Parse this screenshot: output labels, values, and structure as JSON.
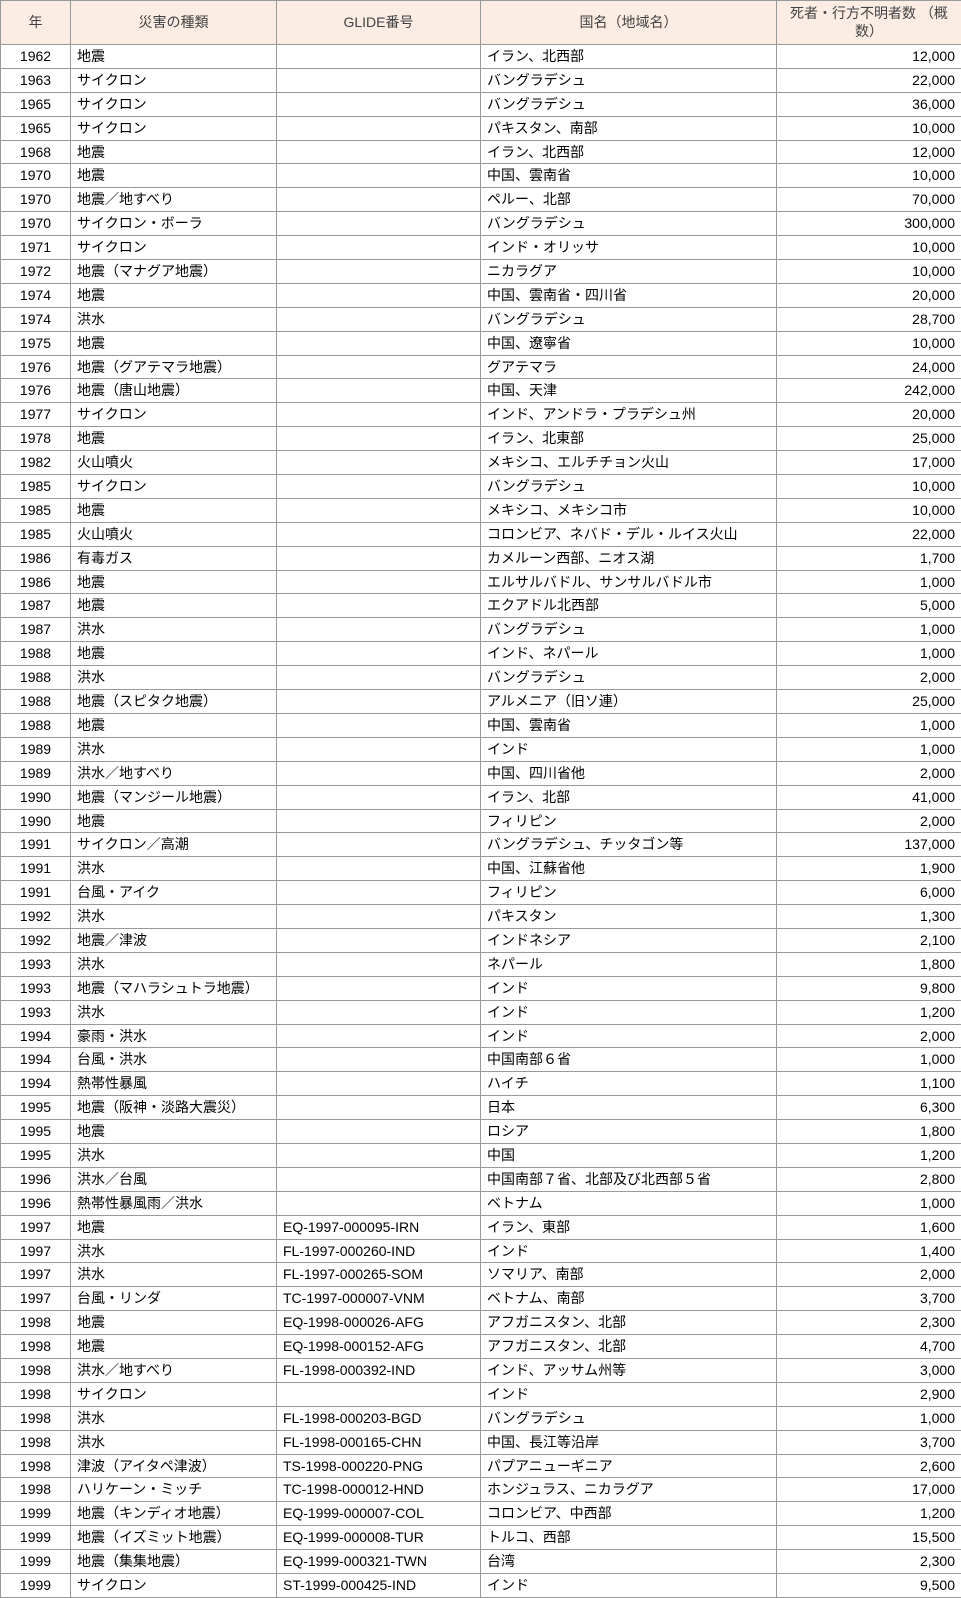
{
  "table": {
    "columns": [
      {
        "key": "year",
        "label": "年"
      },
      {
        "key": "type",
        "label": "災害の種類"
      },
      {
        "key": "glide",
        "label": "GLIDE番号"
      },
      {
        "key": "region",
        "label": "国名（地域名）"
      },
      {
        "key": "count",
        "label": "死者・行方不明者数\n（概数）"
      }
    ],
    "header_bg": "#fbece4",
    "border_color": "#999999",
    "font_family": "Hiragino Kaku Gothic ProN",
    "font_size_pt": 10,
    "rows": [
      {
        "year": "1962",
        "type": "地震",
        "glide": "",
        "region": "イラン、北西部",
        "count": "12,000"
      },
      {
        "year": "1963",
        "type": "サイクロン",
        "glide": "",
        "region": "バングラデシュ",
        "count": "22,000"
      },
      {
        "year": "1965",
        "type": "サイクロン",
        "glide": "",
        "region": "バングラデシュ",
        "count": "36,000"
      },
      {
        "year": "1965",
        "type": "サイクロン",
        "glide": "",
        "region": "パキスタン、南部",
        "count": "10,000"
      },
      {
        "year": "1968",
        "type": "地震",
        "glide": "",
        "region": "イラン、北西部",
        "count": "12,000"
      },
      {
        "year": "1970",
        "type": "地震",
        "glide": "",
        "region": "中国、雲南省",
        "count": "10,000"
      },
      {
        "year": "1970",
        "type": "地震／地すべり",
        "glide": "",
        "region": "ペルー、北部",
        "count": "70,000"
      },
      {
        "year": "1970",
        "type": "サイクロン・ボーラ",
        "glide": "",
        "region": "バングラデシュ",
        "count": "300,000"
      },
      {
        "year": "1971",
        "type": "サイクロン",
        "glide": "",
        "region": "インド・オリッサ",
        "count": "10,000"
      },
      {
        "year": "1972",
        "type": "地震（マナグア地震）",
        "glide": "",
        "region": "ニカラグア",
        "count": "10,000"
      },
      {
        "year": "1974",
        "type": "地震",
        "glide": "",
        "region": "中国、雲南省・四川省",
        "count": "20,000"
      },
      {
        "year": "1974",
        "type": "洪水",
        "glide": "",
        "region": "バングラデシュ",
        "count": "28,700"
      },
      {
        "year": "1975",
        "type": "地震",
        "glide": "",
        "region": "中国、遼寧省",
        "count": "10,000"
      },
      {
        "year": "1976",
        "type": "地震（グアテマラ地震）",
        "glide": "",
        "region": "グアテマラ",
        "count": "24,000"
      },
      {
        "year": "1976",
        "type": "地震（唐山地震）",
        "glide": "",
        "region": "中国、天津",
        "count": "242,000"
      },
      {
        "year": "1977",
        "type": "サイクロン",
        "glide": "",
        "region": "インド、アンドラ・プラデシュ州",
        "count": "20,000"
      },
      {
        "year": "1978",
        "type": "地震",
        "glide": "",
        "region": "イラン、北東部",
        "count": "25,000"
      },
      {
        "year": "1982",
        "type": "火山噴火",
        "glide": "",
        "region": "メキシコ、エルチチョン火山",
        "count": "17,000"
      },
      {
        "year": "1985",
        "type": "サイクロン",
        "glide": "",
        "region": "バングラデシュ",
        "count": "10,000"
      },
      {
        "year": "1985",
        "type": "地震",
        "glide": "",
        "region": "メキシコ、メキシコ市",
        "count": "10,000"
      },
      {
        "year": "1985",
        "type": "火山噴火",
        "glide": "",
        "region": "コロンビア、ネバド・デル・ルイス火山",
        "count": "22,000"
      },
      {
        "year": "1986",
        "type": "有毒ガス",
        "glide": "",
        "region": "カメルーン西部、ニオス湖",
        "count": "1,700"
      },
      {
        "year": "1986",
        "type": "地震",
        "glide": "",
        "region": "エルサルバドル、サンサルバドル市",
        "count": "1,000"
      },
      {
        "year": "1987",
        "type": "地震",
        "glide": "",
        "region": "エクアドル北西部",
        "count": "5,000"
      },
      {
        "year": "1987",
        "type": "洪水",
        "glide": "",
        "region": "バングラデシュ",
        "count": "1,000"
      },
      {
        "year": "1988",
        "type": "地震",
        "glide": "",
        "region": "インド、ネパール",
        "count": "1,000"
      },
      {
        "year": "1988",
        "type": "洪水",
        "glide": "",
        "region": "バングラデシュ",
        "count": "2,000"
      },
      {
        "year": "1988",
        "type": "地震（スピタク地震）",
        "glide": "",
        "region": "アルメニア（旧ソ連）",
        "count": "25,000"
      },
      {
        "year": "1988",
        "type": "地震",
        "glide": "",
        "region": "中国、雲南省",
        "count": "1,000"
      },
      {
        "year": "1989",
        "type": "洪水",
        "glide": "",
        "region": "インド",
        "count": "1,000"
      },
      {
        "year": "1989",
        "type": "洪水／地すべり",
        "glide": "",
        "region": "中国、四川省他",
        "count": "2,000"
      },
      {
        "year": "1990",
        "type": "地震（マンジール地震）",
        "glide": "",
        "region": "イラン、北部",
        "count": "41,000"
      },
      {
        "year": "1990",
        "type": "地震",
        "glide": "",
        "region": "フィリピン",
        "count": "2,000"
      },
      {
        "year": "1991",
        "type": "サイクロン／高潮",
        "glide": "",
        "region": "バングラデシュ、チッタゴン等",
        "count": "137,000"
      },
      {
        "year": "1991",
        "type": "洪水",
        "glide": "",
        "region": "中国、江蘇省他",
        "count": "1,900"
      },
      {
        "year": "1991",
        "type": "台風・アイク",
        "glide": "",
        "region": "フィリピン",
        "count": "6,000"
      },
      {
        "year": "1992",
        "type": "洪水",
        "glide": "",
        "region": "パキスタン",
        "count": "1,300"
      },
      {
        "year": "1992",
        "type": "地震／津波",
        "glide": "",
        "region": "インドネシア",
        "count": "2,100"
      },
      {
        "year": "1993",
        "type": "洪水",
        "glide": "",
        "region": "ネパール",
        "count": "1,800"
      },
      {
        "year": "1993",
        "type": "地震（マハラシュトラ地震）",
        "glide": "",
        "region": "インド",
        "count": "9,800"
      },
      {
        "year": "1993",
        "type": "洪水",
        "glide": "",
        "region": "インド",
        "count": "1,200"
      },
      {
        "year": "1994",
        "type": "豪雨・洪水",
        "glide": "",
        "region": "インド",
        "count": "2,000"
      },
      {
        "year": "1994",
        "type": "台風・洪水",
        "glide": "",
        "region": "中国南部６省",
        "count": "1,000"
      },
      {
        "year": "1994",
        "type": "熱帯性暴風",
        "glide": "",
        "region": "ハイチ",
        "count": "1,100"
      },
      {
        "year": "1995",
        "type": "地震（阪神・淡路大震災）",
        "glide": "",
        "region": "日本",
        "count": "6,300"
      },
      {
        "year": "1995",
        "type": "地震",
        "glide": "",
        "region": "ロシア",
        "count": "1,800"
      },
      {
        "year": "1995",
        "type": "洪水",
        "glide": "",
        "region": "中国",
        "count": "1,200"
      },
      {
        "year": "1996",
        "type": "洪水／台風",
        "glide": "",
        "region": "中国南部７省、北部及び北西部５省",
        "count": "2,800"
      },
      {
        "year": "1996",
        "type": "熱帯性暴風雨／洪水",
        "glide": "",
        "region": "ベトナム",
        "count": "1,000"
      },
      {
        "year": "1997",
        "type": "地震",
        "glide": "EQ-1997-000095-IRN",
        "region": "イラン、東部",
        "count": "1,600"
      },
      {
        "year": "1997",
        "type": "洪水",
        "glide": "FL-1997-000260-IND",
        "region": "インド",
        "count": "1,400"
      },
      {
        "year": "1997",
        "type": "洪水",
        "glide": "FL-1997-000265-SOM",
        "region": "ソマリア、南部",
        "count": "2,000"
      },
      {
        "year": "1997",
        "type": "台風・リンダ",
        "glide": "TC-1997-000007-VNM",
        "region": "ベトナム、南部",
        "count": "3,700"
      },
      {
        "year": "1998",
        "type": "地震",
        "glide": "EQ-1998-000026-AFG",
        "region": "アフガニスタン、北部",
        "count": "2,300"
      },
      {
        "year": "1998",
        "type": "地震",
        "glide": "EQ-1998-000152-AFG",
        "region": "アフガニスタン、北部",
        "count": "4,700"
      },
      {
        "year": "1998",
        "type": "洪水／地すべり",
        "glide": "FL-1998-000392-IND",
        "region": "インド、アッサム州等",
        "count": "3,000"
      },
      {
        "year": "1998",
        "type": "サイクロン",
        "glide": "",
        "region": "インド",
        "count": "2,900"
      },
      {
        "year": "1998",
        "type": "洪水",
        "glide": "FL-1998-000203-BGD",
        "region": "バングラデシュ",
        "count": "1,000"
      },
      {
        "year": "1998",
        "type": "洪水",
        "glide": "FL-1998-000165-CHN",
        "region": "中国、長江等沿岸",
        "count": "3,700"
      },
      {
        "year": "1998",
        "type": "津波（アイタペ津波）",
        "glide": "TS-1998-000220-PNG",
        "region": "パプアニューギニア",
        "count": "2,600"
      },
      {
        "year": "1998",
        "type": "ハリケーン・ミッチ",
        "glide": "TC-1998-000012-HND",
        "region": "ホンジュラス、ニカラグア",
        "count": "17,000"
      },
      {
        "year": "1999",
        "type": "地震（キンディオ地震）",
        "glide": "EQ-1999-000007-COL",
        "region": "コロンビア、中西部",
        "count": "1,200"
      },
      {
        "year": "1999",
        "type": "地震（イズミット地震）",
        "glide": "EQ-1999-000008-TUR",
        "region": "トルコ、西部",
        "count": "15,500"
      },
      {
        "year": "1999",
        "type": "地震（集集地震）",
        "glide": "EQ-1999-000321-TWN",
        "region": "台湾",
        "count": "2,300"
      },
      {
        "year": "1999",
        "type": "サイクロン",
        "glide": "ST-1999-000425-IND",
        "region": "インド",
        "count": "9,500"
      }
    ]
  }
}
